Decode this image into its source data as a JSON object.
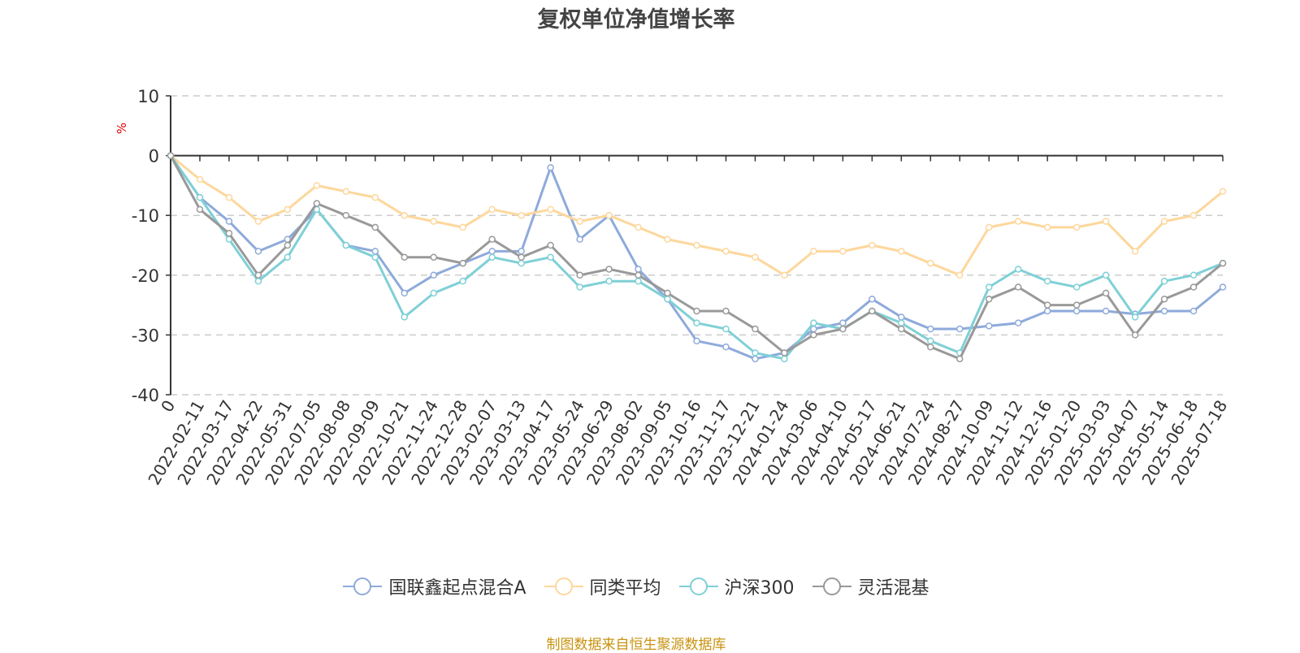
{
  "chart_data": {
    "type": "line",
    "title": "复权单位净值增长率",
    "ylabel": "%",
    "ylim": [
      -40,
      10
    ],
    "yticks": [
      10,
      0,
      -10,
      -20,
      -30,
      -40
    ],
    "grid": true,
    "legend_position": "bottom",
    "source": "制图数据来自恒生聚源数据库",
    "x": [
      "0",
      "2022-02-11",
      "2022-03-17",
      "2022-04-22",
      "2022-05-31",
      "2022-07-05",
      "2022-08-08",
      "2022-09-09",
      "2022-10-21",
      "2022-11-24",
      "2022-12-28",
      "2023-02-07",
      "2023-03-13",
      "2023-04-17",
      "2023-05-24",
      "2023-06-29",
      "2023-08-02",
      "2023-09-05",
      "2023-10-16",
      "2023-11-17",
      "2023-12-21",
      "2024-01-24",
      "2024-03-06",
      "2024-04-10",
      "2024-05-17",
      "2024-06-21",
      "2024-07-24",
      "2024-08-27",
      "2024-10-09",
      "2024-11-12",
      "2024-12-16",
      "2025-01-20",
      "2025-03-03",
      "2025-04-07",
      "2025-05-14",
      "2025-06-18",
      "2025-07-18"
    ],
    "series": [
      {
        "name": "国联鑫起点混合A",
        "color": "#8eaadb",
        "values": [
          0,
          -7,
          -11,
          -16,
          -14,
          -9,
          -15,
          -16,
          -23,
          -20,
          -18,
          -16,
          -16,
          -2,
          -14,
          -10,
          -19,
          -24,
          -31,
          -32,
          -34,
          -33,
          -29,
          -28,
          -24,
          -27,
          -29,
          -29,
          -28.5,
          -28,
          -26,
          -26,
          -26,
          -26.5,
          -26,
          -26,
          -22
        ]
      },
      {
        "name": "同类平均",
        "color": "#fdd79c",
        "values": [
          0,
          -4,
          -7,
          -11,
          -9,
          -5,
          -6,
          -7,
          -10,
          -11,
          -12,
          -9,
          -10,
          -9,
          -11,
          -10,
          -12,
          -14,
          -15,
          -16,
          -17,
          -20,
          -16,
          -16,
          -15,
          -16,
          -18,
          -20,
          -12,
          -11,
          -12,
          -12,
          -11,
          -16,
          -11,
          -10,
          -6
        ]
      },
      {
        "name": "沪深300",
        "color": "#7fd0d6",
        "values": [
          0,
          -7,
          -14,
          -21,
          -17,
          -9,
          -15,
          -17,
          -27,
          -23,
          -21,
          -17,
          -18,
          -17,
          -22,
          -21,
          -21,
          -24,
          -28,
          -29,
          -33,
          -34,
          -28,
          -29,
          -26,
          -28,
          -31,
          -33,
          -22,
          -19,
          -21,
          -22,
          -20,
          -27,
          -21,
          -20,
          -18
        ]
      },
      {
        "name": "灵活混基",
        "color": "#999999",
        "values": [
          0,
          -9,
          -13,
          -20,
          -15,
          -8,
          -10,
          -12,
          -17,
          -17,
          -18,
          -14,
          -17,
          -15,
          -20,
          -19,
          -20,
          -23,
          -26,
          -26,
          -29,
          -33,
          -30,
          -29,
          -26,
          -29,
          -32,
          -34,
          -24,
          -22,
          -25,
          -25,
          -23,
          -30,
          -24,
          -22,
          -18
        ]
      }
    ]
  }
}
